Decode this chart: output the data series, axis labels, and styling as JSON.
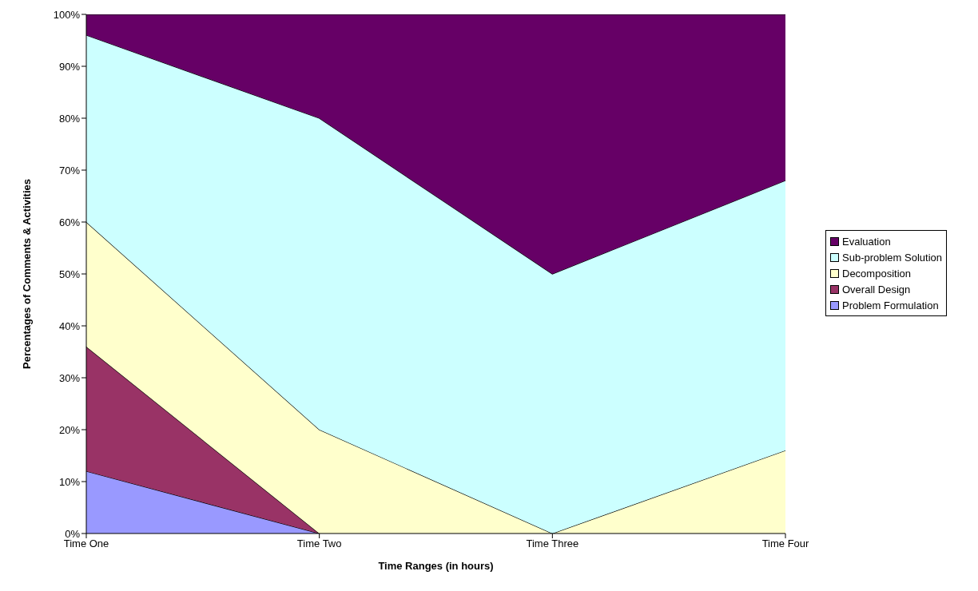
{
  "chart_data": {
    "type": "area",
    "stacked": true,
    "xlabel": "Time Ranges (in hours)",
    "ylabel": "Percentages of Comments & Activities",
    "categories": [
      "Time One",
      "Time Two",
      "Time Three",
      "Time Four"
    ],
    "ylim": [
      0,
      100
    ],
    "yticks": [
      {
        "value": 0,
        "label": "0%"
      },
      {
        "value": 10,
        "label": "10%"
      },
      {
        "value": 20,
        "label": "20%"
      },
      {
        "value": 30,
        "label": "30%"
      },
      {
        "value": 40,
        "label": "40%"
      },
      {
        "value": 50,
        "label": "50%"
      },
      {
        "value": 60,
        "label": "60%"
      },
      {
        "value": 70,
        "label": "70%"
      },
      {
        "value": 80,
        "label": "80%"
      },
      {
        "value": 90,
        "label": "90%"
      },
      {
        "value": 100,
        "label": "100%"
      }
    ],
    "legend": "right",
    "grid": false,
    "series": [
      {
        "name": "Problem Formulation",
        "color": "#9999ff",
        "values": [
          12,
          0,
          0,
          0
        ]
      },
      {
        "name": "Overall Design",
        "color": "#993366",
        "values": [
          24,
          0,
          0,
          0
        ]
      },
      {
        "name": "Decomposition",
        "color": "#ffffcc",
        "values": [
          24,
          20,
          0,
          16
        ]
      },
      {
        "name": "Sub-problem Solution",
        "color": "#ccffff",
        "values": [
          36,
          60,
          50,
          52
        ]
      },
      {
        "name": "Evaluation",
        "color": "#660066",
        "values": [
          4,
          20,
          50,
          32
        ]
      }
    ]
  }
}
